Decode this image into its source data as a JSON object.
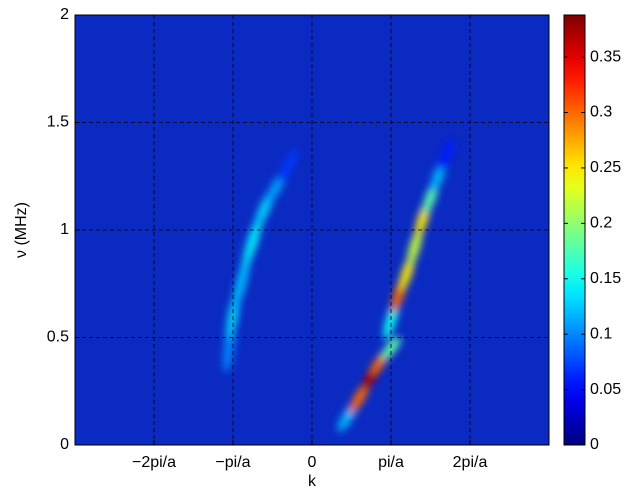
{
  "chart_data": {
    "type": "heatmap",
    "xlabel": "k",
    "ylabel": "ν (MHz)",
    "xlim": [
      -3,
      3
    ],
    "xticks": [
      {
        "value": -2,
        "label": "−2pi/a"
      },
      {
        "value": -1,
        "label": "−pi/a"
      },
      0,
      {
        "value": 1,
        "label": "pi/a"
      },
      {
        "value": 2,
        "label": "2pi/a"
      }
    ],
    "ylim": [
      0,
      2
    ],
    "yticks": [
      0,
      0.5,
      1,
      1.5,
      2
    ],
    "grid": true,
    "colormap": "jet",
    "clim": [
      0,
      0.388
    ],
    "cticks": [
      0,
      0.05,
      0.1,
      0.15,
      0.2,
      0.25,
      0.3,
      0.35
    ],
    "streaks": [
      {
        "x": [
          -1.05,
          -1.0,
          -0.9,
          -0.75,
          -0.6,
          -0.45,
          -0.3
        ],
        "y": [
          0.45,
          0.6,
          0.75,
          0.95,
          1.1,
          1.2,
          1.3
        ],
        "values": [
          0.1,
          0.13,
          0.12,
          0.14,
          0.13,
          0.11,
          0.07
        ]
      },
      {
        "x": [
          1.0,
          1.1,
          1.2,
          1.3,
          1.4,
          1.5,
          1.6,
          1.7
        ],
        "y": [
          0.58,
          0.7,
          0.8,
          0.92,
          1.05,
          1.15,
          1.25,
          1.35
        ],
        "values": [
          0.15,
          0.3,
          0.25,
          0.22,
          0.25,
          0.18,
          0.12,
          0.06
        ]
      },
      {
        "x": [
          0.45,
          0.6,
          0.75,
          0.85,
          1.0
        ],
        "y": [
          0.13,
          0.22,
          0.32,
          0.38,
          0.45
        ],
        "values": [
          0.12,
          0.3,
          0.37,
          0.3,
          0.18
        ]
      }
    ]
  }
}
